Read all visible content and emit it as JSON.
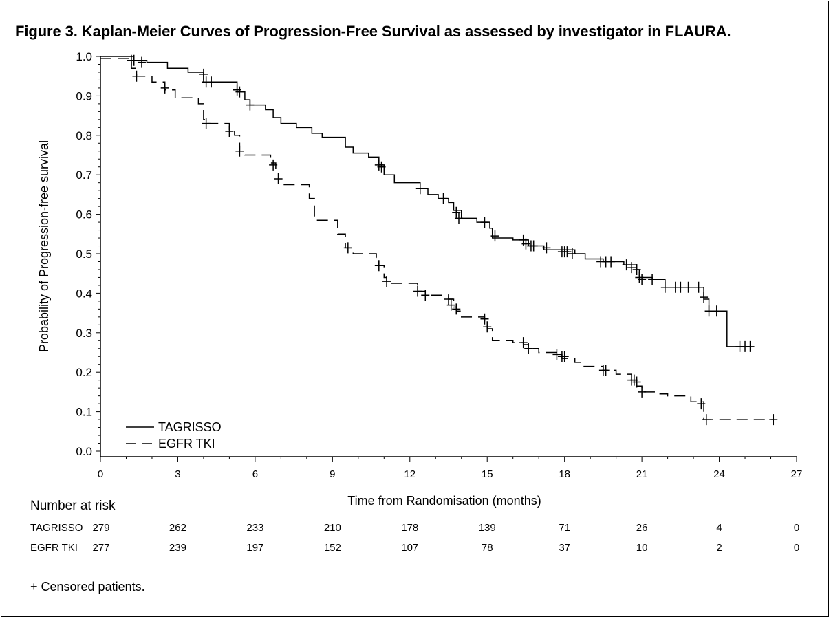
{
  "title": "Figure 3.   Kaplan-Meier Curves of Progression-Free Survival as assessed by investigator in FLAURA.",
  "risk_table": {
    "title": "Number at risk",
    "rows": [
      {
        "label": "TAGRISSO",
        "values": [
          "279",
          "262",
          "233",
          "210",
          "178",
          "139",
          "71",
          "26",
          "4",
          "0"
        ]
      },
      {
        "label": "EGFR TKI",
        "values": [
          "277",
          "239",
          "197",
          "152",
          "107",
          "78",
          "37",
          "10",
          "2",
          "0"
        ]
      }
    ]
  },
  "footnote": "+ Censored patients.",
  "chart_data": {
    "type": "line",
    "title": "Figure 3.   Kaplan-Meier Curves of Progression-Free Survival as assessed by investigator in FLAURA.",
    "xlabel": "Time from Randomisation (months)",
    "ylabel": "Probability of Progression-free survival",
    "xlim": [
      0,
      27
    ],
    "ylim": [
      0,
      1
    ],
    "xticks": [
      0,
      3,
      6,
      9,
      12,
      15,
      18,
      21,
      24,
      27
    ],
    "xtick_labels": [
      "0",
      "3",
      "6",
      "9",
      "12",
      "15",
      "18",
      "21",
      "24",
      "27"
    ],
    "yticks": [
      0,
      0.1,
      0.2,
      0.3,
      0.4,
      0.5,
      0.6,
      0.7,
      0.8,
      0.9,
      1.0
    ],
    "ytick_labels": [
      "0.0",
      "0.1",
      "0.2",
      "0.3",
      "0.4",
      "0.5",
      "0.6",
      "0.7",
      "0.8",
      "0.9",
      "1.0"
    ],
    "grid": false,
    "legend_position": "bottom-left",
    "series": [
      {
        "name": "TAGRISSO",
        "style": "solid",
        "color": "#000000",
        "steps": [
          [
            0,
            1.0
          ],
          [
            1.3,
            0.99
          ],
          [
            1.8,
            0.985
          ],
          [
            2.6,
            0.97
          ],
          [
            3.4,
            0.96
          ],
          [
            4.0,
            0.935
          ],
          [
            5.3,
            0.91
          ],
          [
            5.6,
            0.89
          ],
          [
            5.8,
            0.877
          ],
          [
            6.4,
            0.865
          ],
          [
            6.7,
            0.845
          ],
          [
            7.0,
            0.83
          ],
          [
            7.6,
            0.82
          ],
          [
            8.2,
            0.805
          ],
          [
            8.6,
            0.795
          ],
          [
            9.5,
            0.77
          ],
          [
            9.8,
            0.755
          ],
          [
            10.4,
            0.745
          ],
          [
            10.8,
            0.725
          ],
          [
            11.0,
            0.7
          ],
          [
            11.4,
            0.68
          ],
          [
            12.4,
            0.665
          ],
          [
            12.7,
            0.65
          ],
          [
            13.1,
            0.64
          ],
          [
            13.5,
            0.63
          ],
          [
            13.7,
            0.61
          ],
          [
            14.0,
            0.59
          ],
          [
            14.6,
            0.58
          ],
          [
            15.1,
            0.565
          ],
          [
            15.2,
            0.54
          ],
          [
            16.0,
            0.535
          ],
          [
            16.6,
            0.52
          ],
          [
            17.2,
            0.51
          ],
          [
            18.4,
            0.5
          ],
          [
            18.8,
            0.487
          ],
          [
            19.5,
            0.48
          ],
          [
            20.3,
            0.472
          ],
          [
            20.8,
            0.46
          ],
          [
            20.9,
            0.44
          ],
          [
            21.4,
            0.435
          ],
          [
            21.9,
            0.415
          ],
          [
            23.4,
            0.385
          ],
          [
            23.6,
            0.355
          ],
          [
            24.3,
            0.265
          ]
        ],
        "end_x": 25.2,
        "censored": [
          [
            1.2,
            0.99
          ],
          [
            1.3,
            0.99
          ],
          [
            1.6,
            0.985
          ],
          [
            4.0,
            0.955
          ],
          [
            4.1,
            0.935
          ],
          [
            4.3,
            0.935
          ],
          [
            5.3,
            0.915
          ],
          [
            5.4,
            0.91
          ],
          [
            5.8,
            0.877
          ],
          [
            10.8,
            0.725
          ],
          [
            10.9,
            0.72
          ],
          [
            12.4,
            0.665
          ],
          [
            13.3,
            0.64
          ],
          [
            13.8,
            0.605
          ],
          [
            13.9,
            0.59
          ],
          [
            14.9,
            0.58
          ],
          [
            15.3,
            0.545
          ],
          [
            16.4,
            0.535
          ],
          [
            16.5,
            0.525
          ],
          [
            16.7,
            0.52
          ],
          [
            16.8,
            0.52
          ],
          [
            17.3,
            0.515
          ],
          [
            17.9,
            0.505
          ],
          [
            18.0,
            0.505
          ],
          [
            18.1,
            0.505
          ],
          [
            18.3,
            0.5
          ],
          [
            19.4,
            0.48
          ],
          [
            19.6,
            0.48
          ],
          [
            19.8,
            0.48
          ],
          [
            20.4,
            0.472
          ],
          [
            20.6,
            0.465
          ],
          [
            20.8,
            0.46
          ],
          [
            20.9,
            0.44
          ],
          [
            21.0,
            0.435
          ],
          [
            21.4,
            0.435
          ],
          [
            21.9,
            0.415
          ],
          [
            22.3,
            0.415
          ],
          [
            22.5,
            0.415
          ],
          [
            22.8,
            0.415
          ],
          [
            23.2,
            0.415
          ],
          [
            23.4,
            0.39
          ],
          [
            23.6,
            0.355
          ],
          [
            23.9,
            0.355
          ],
          [
            24.8,
            0.265
          ],
          [
            25.0,
            0.265
          ],
          [
            25.2,
            0.265
          ]
        ]
      },
      {
        "name": "EGFR TKI",
        "style": "dashed",
        "color": "#000000",
        "steps": [
          [
            0,
            0.995
          ],
          [
            1.2,
            0.97
          ],
          [
            1.4,
            0.95
          ],
          [
            2.0,
            0.935
          ],
          [
            2.5,
            0.915
          ],
          [
            2.9,
            0.895
          ],
          [
            3.8,
            0.88
          ],
          [
            4.0,
            0.84
          ],
          [
            4.1,
            0.83
          ],
          [
            5.0,
            0.815
          ],
          [
            5.2,
            0.8
          ],
          [
            5.4,
            0.76
          ],
          [
            5.6,
            0.75
          ],
          [
            6.6,
            0.73
          ],
          [
            6.8,
            0.71
          ],
          [
            6.9,
            0.675
          ],
          [
            8.1,
            0.64
          ],
          [
            8.3,
            0.585
          ],
          [
            9.2,
            0.55
          ],
          [
            9.5,
            0.515
          ],
          [
            9.8,
            0.5
          ],
          [
            10.7,
            0.49
          ],
          [
            10.8,
            0.47
          ],
          [
            11.0,
            0.44
          ],
          [
            11.1,
            0.425
          ],
          [
            12.3,
            0.405
          ],
          [
            12.6,
            0.395
          ],
          [
            13.5,
            0.385
          ],
          [
            13.7,
            0.365
          ],
          [
            13.8,
            0.355
          ],
          [
            14.0,
            0.34
          ],
          [
            14.9,
            0.33
          ],
          [
            15.0,
            0.31
          ],
          [
            15.2,
            0.28
          ],
          [
            16.0,
            0.275
          ],
          [
            16.4,
            0.27
          ],
          [
            16.6,
            0.26
          ],
          [
            17.0,
            0.25
          ],
          [
            17.8,
            0.245
          ],
          [
            17.9,
            0.235
          ],
          [
            18.4,
            0.225
          ],
          [
            18.7,
            0.215
          ],
          [
            19.5,
            0.205
          ],
          [
            20.0,
            0.195
          ],
          [
            20.6,
            0.175
          ],
          [
            20.8,
            0.165
          ],
          [
            21.0,
            0.15
          ],
          [
            21.7,
            0.145
          ],
          [
            22.0,
            0.14
          ],
          [
            22.9,
            0.125
          ],
          [
            23.4,
            0.08
          ]
        ],
        "end_x": 26.1,
        "censored": [
          [
            1.4,
            0.95
          ],
          [
            2.5,
            0.92
          ],
          [
            4.1,
            0.83
          ],
          [
            5.0,
            0.81
          ],
          [
            5.4,
            0.76
          ],
          [
            6.7,
            0.725
          ],
          [
            6.9,
            0.69
          ],
          [
            9.6,
            0.515
          ],
          [
            10.8,
            0.47
          ],
          [
            11.1,
            0.43
          ],
          [
            12.3,
            0.405
          ],
          [
            12.6,
            0.395
          ],
          [
            13.5,
            0.385
          ],
          [
            13.6,
            0.37
          ],
          [
            13.8,
            0.36
          ],
          [
            14.9,
            0.335
          ],
          [
            15.0,
            0.315
          ],
          [
            16.4,
            0.275
          ],
          [
            16.6,
            0.26
          ],
          [
            17.7,
            0.245
          ],
          [
            17.9,
            0.24
          ],
          [
            18.0,
            0.24
          ],
          [
            19.5,
            0.205
          ],
          [
            19.6,
            0.205
          ],
          [
            20.6,
            0.18
          ],
          [
            20.7,
            0.18
          ],
          [
            20.8,
            0.175
          ],
          [
            21.0,
            0.15
          ],
          [
            23.3,
            0.12
          ],
          [
            23.5,
            0.08
          ],
          [
            26.1,
            0.08
          ]
        ]
      }
    ]
  }
}
